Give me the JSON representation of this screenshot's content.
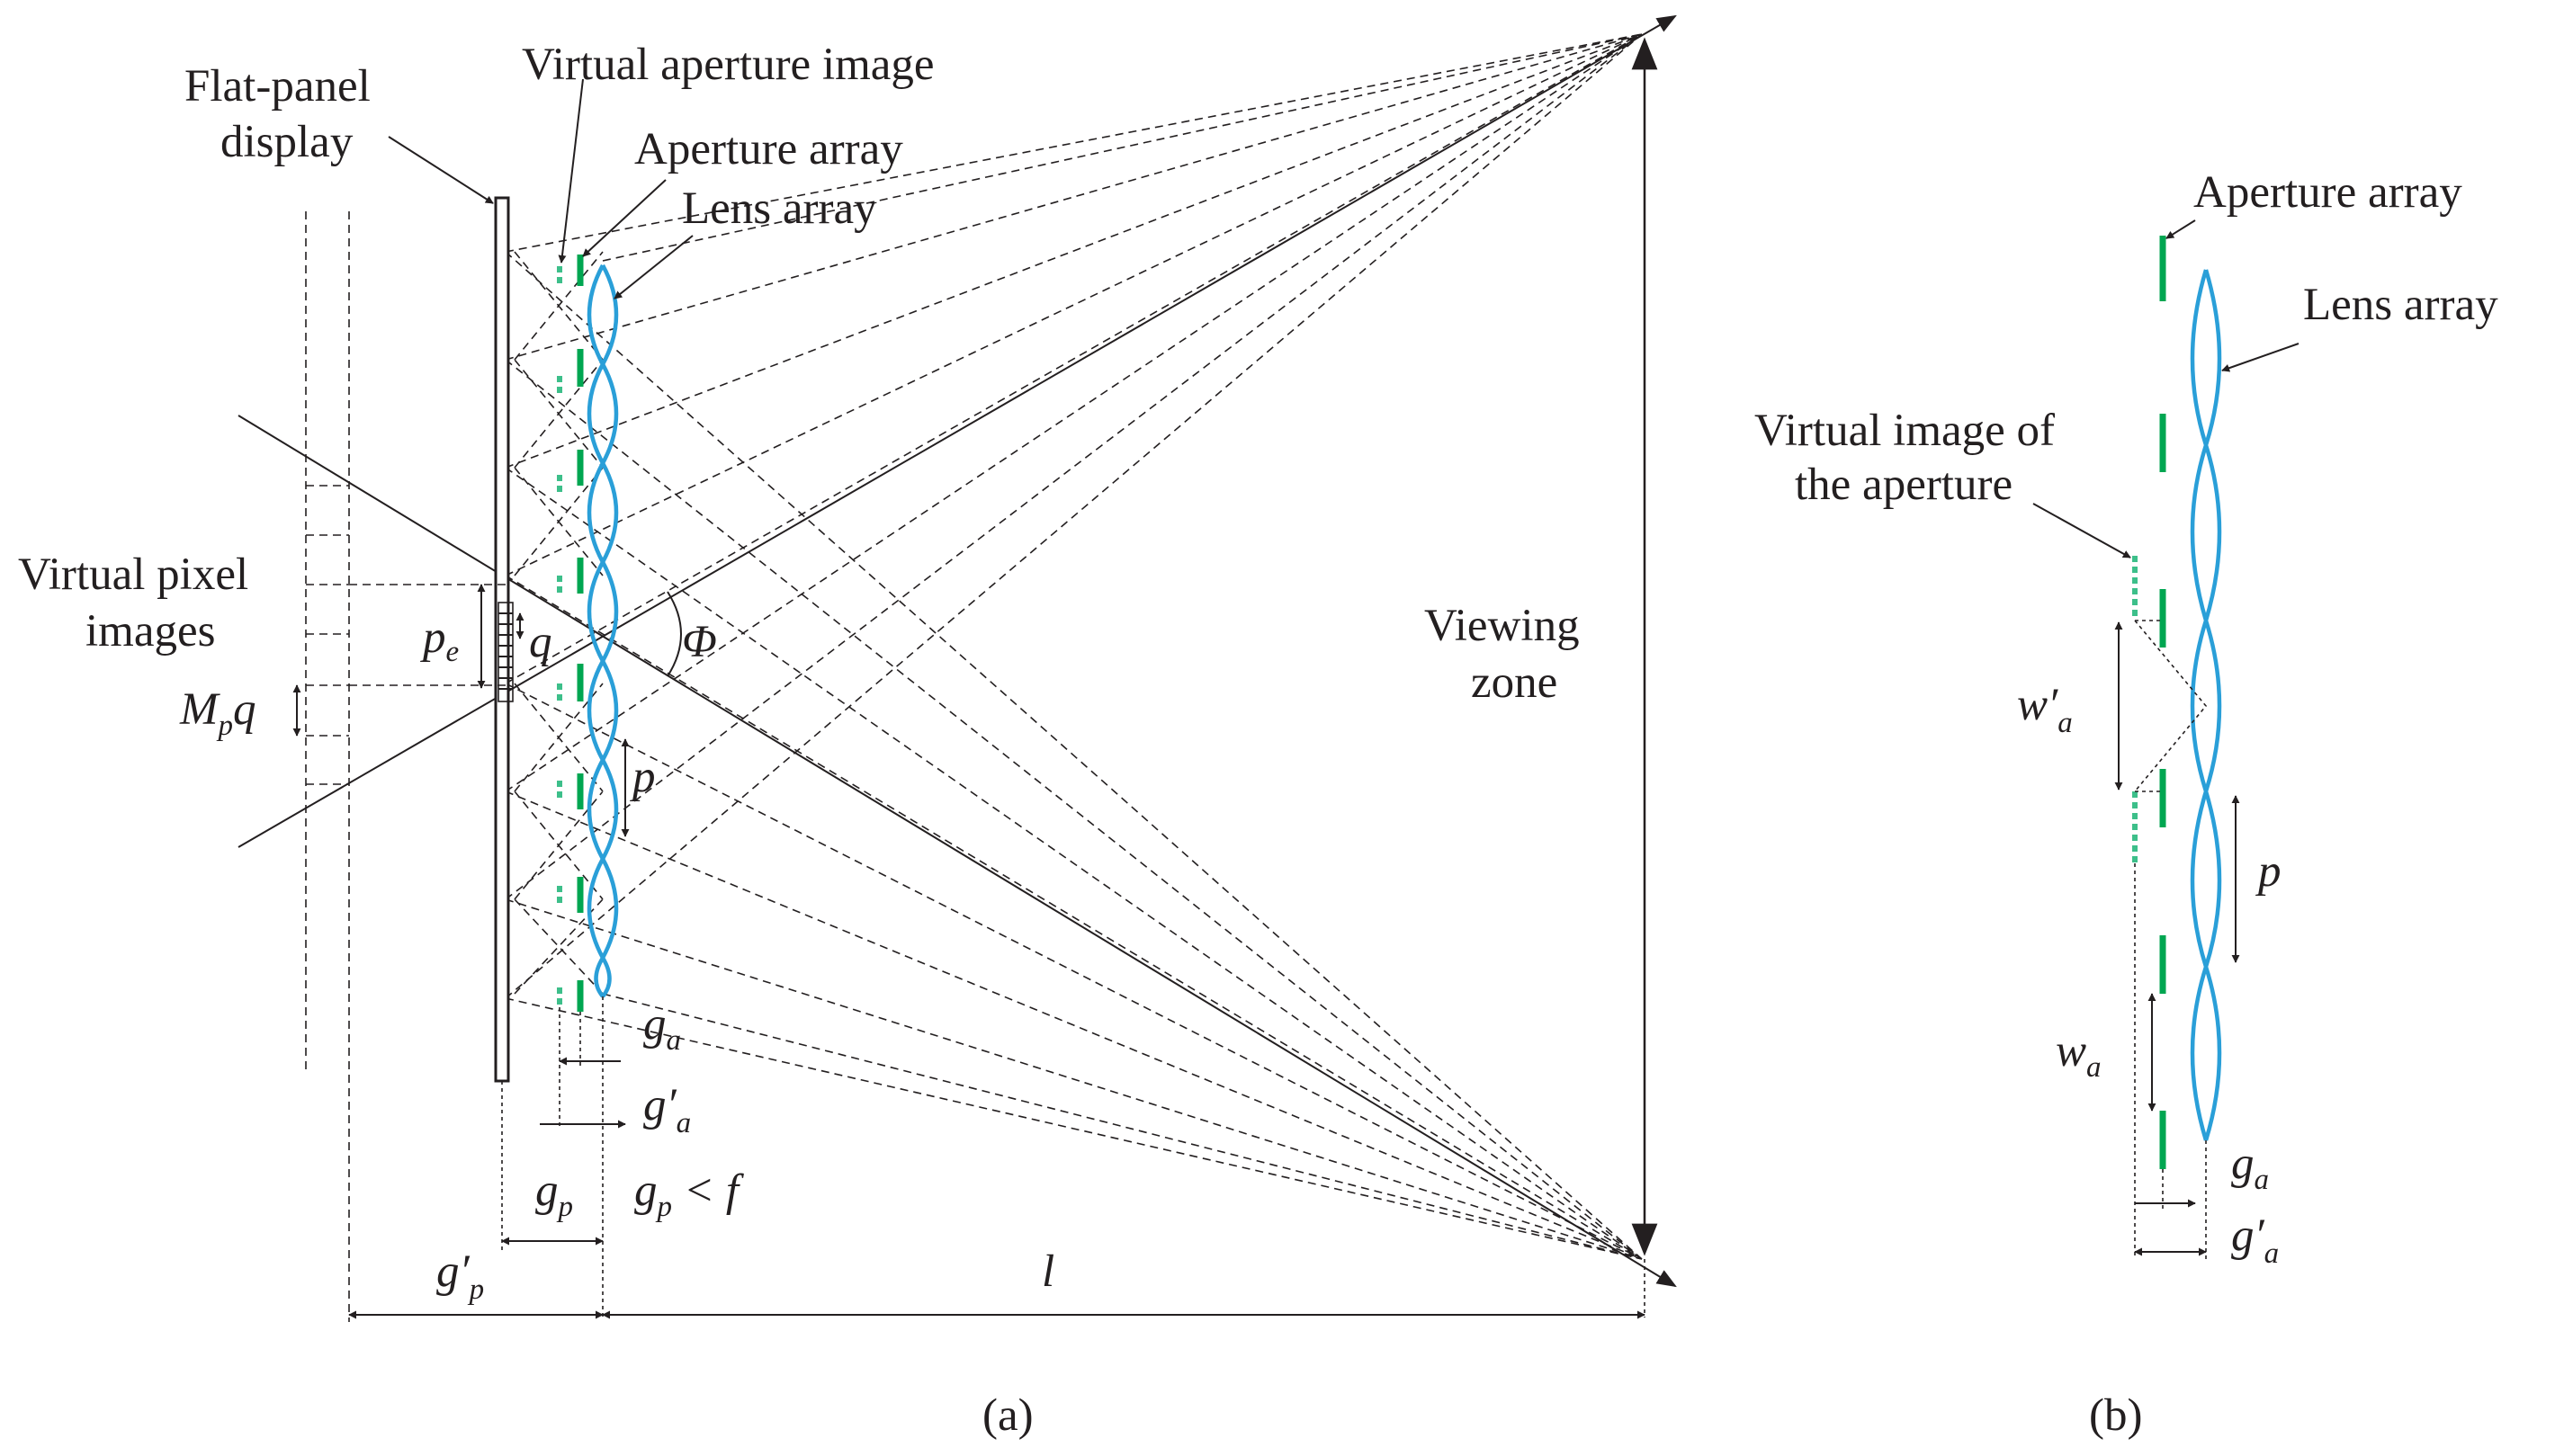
{
  "panel_a": {
    "caption": "(a)",
    "labels": {
      "flat_panel_display_line1": "Flat-panel",
      "flat_panel_display_line2": "display",
      "virtual_aperture_image": "Virtual aperture image",
      "aperture_array": "Aperture array",
      "lens_array": "Lens array",
      "virtual_pixel_images_line1": "Virtual pixel",
      "virtual_pixel_images_line2": "images",
      "viewing_zone_line1": "Viewing",
      "viewing_zone_line2": "zone"
    },
    "symbols": {
      "pe": "p",
      "pe_sub": "e",
      "q": "q",
      "mpq_m": "M",
      "mpq_sub": "p",
      "mpq_q": "q",
      "phi": "Φ",
      "p": "p",
      "ga": "g",
      "ga_sub": "a",
      "ga_prime": "g′",
      "ga_prime_sub": "a",
      "gp": "g",
      "gp_sub": "p",
      "gp_lt_f_g": "g",
      "gp_lt_f_sub": "p",
      "gp_lt_f_rest": " < f",
      "gp_prime": "g′",
      "gp_prime_sub": "p",
      "l": "l"
    }
  },
  "panel_b": {
    "caption": "(b)",
    "labels": {
      "aperture_array": "Aperture array",
      "lens_array": "Lens array",
      "virtual_image_line1": "Virtual image of",
      "virtual_image_line2": "the aperture"
    },
    "symbols": {
      "wa_prime": "w′",
      "wa_prime_sub": "a",
      "p": "p",
      "wa": "w",
      "wa_sub": "a",
      "ga": "g",
      "ga_sub": "a",
      "ga_prime": "g′",
      "ga_prime_sub": "a"
    }
  },
  "colors": {
    "lens": "#2a9fd8",
    "aperture": "#00a651",
    "virtual_aperture": "#3dbf8a",
    "ink": "#231f20"
  }
}
